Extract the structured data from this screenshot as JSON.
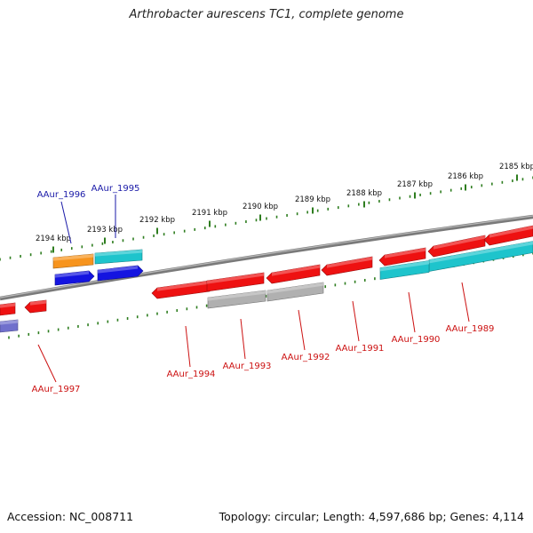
{
  "title": "Arthrobacter aurescens TC1, complete genome",
  "accession": "Accession: NC_008711",
  "summary": "Topology: circular; Length: 4,597,686 bp; Genes: 4,114",
  "colors": {
    "backbone": "#7a7a7a",
    "ticks": "#2e7d1f",
    "forward_label": "#1a1aa8",
    "reverse_label": "#cc1111",
    "red": "#ee1111",
    "orange": "#f7941d",
    "cyan": "#1ec4cc",
    "blue": "#1414e0",
    "gray": "#b0b0b0",
    "purple": "#7070cc"
  },
  "ticks": [
    {
      "label": "2194 kbp"
    },
    {
      "label": "2193 kbp"
    },
    {
      "label": "2192 kbp"
    },
    {
      "label": "2191 kbp"
    },
    {
      "label": "2190 kbp"
    },
    {
      "label": "2189 kbp"
    },
    {
      "label": "2188 kbp"
    },
    {
      "label": "2187 kbp"
    },
    {
      "label": "2186 kbp"
    },
    {
      "label": "2185 kbp"
    }
  ],
  "gene_labels": [
    {
      "name": "AAur_1996",
      "strand": "forward"
    },
    {
      "name": "AAur_1995",
      "strand": "forward"
    },
    {
      "name": "AAur_1997",
      "strand": "reverse"
    },
    {
      "name": "AAur_1994",
      "strand": "reverse"
    },
    {
      "name": "AAur_1993",
      "strand": "reverse"
    },
    {
      "name": "AAur_1992",
      "strand": "reverse"
    },
    {
      "name": "AAur_1991",
      "strand": "reverse"
    },
    {
      "name": "AAur_1990",
      "strand": "reverse"
    },
    {
      "name": "AAur_1989",
      "strand": "reverse"
    }
  ]
}
